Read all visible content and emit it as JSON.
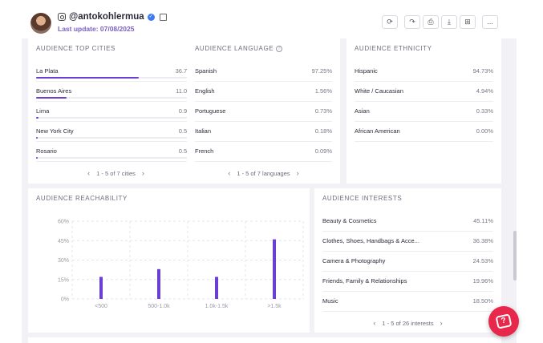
{
  "header": {
    "handle": "@antokohlermua",
    "last_update": "Last update: 07/08/2025",
    "toolbar": {
      "refresh_icon": "refresh-icon",
      "share_icon": "share-icon",
      "print_icon": "print-icon",
      "download_icon": "download-icon",
      "add_icon": "add-to-list-icon",
      "more_label": "..."
    }
  },
  "top_cities": {
    "title": "AUDIENCE TOP CITIES",
    "items": [
      {
        "label": "La Plata",
        "value": "36.78%",
        "fraction": 0.3678
      },
      {
        "label": "Buenos Aires",
        "value": "11.05%",
        "fraction": 0.1105
      },
      {
        "label": "Lima",
        "value": "0.93%",
        "fraction": 0.0093
      },
      {
        "label": "New York City",
        "value": "0.52%",
        "fraction": 0.0052
      },
      {
        "label": "Rosario",
        "value": "0.52%",
        "fraction": 0.0052
      }
    ],
    "pager": "1 - 5 of 7 cities"
  },
  "language": {
    "title": "AUDIENCE LANGUAGE",
    "items": [
      {
        "label": "Spanish",
        "value": "97.25%"
      },
      {
        "label": "English",
        "value": "1.56%"
      },
      {
        "label": "Portuguese",
        "value": "0.73%"
      },
      {
        "label": "Italian",
        "value": "0.18%"
      },
      {
        "label": "French",
        "value": "0.09%"
      }
    ],
    "pager": "1 - 5 of 7 languages"
  },
  "ethnicity": {
    "title": "AUDIENCE ETHNICITY",
    "items": [
      {
        "label": "Hispanic",
        "value": "94.73%"
      },
      {
        "label": "White / Caucasian",
        "value": "4.94%"
      },
      {
        "label": "Asian",
        "value": "0.33%"
      },
      {
        "label": "African American",
        "value": "0.00%"
      }
    ]
  },
  "reachability": {
    "title": "AUDIENCE REACHABILITY",
    "chart_data": {
      "type": "bar",
      "title": "AUDIENCE REACHABILITY",
      "categories": [
        "<500",
        "500-1.0k",
        "1.0k-1.5k",
        ">1.5k"
      ],
      "values": [
        17,
        23,
        17,
        46
      ],
      "y_ticks": [
        "0%",
        "15%",
        "30%",
        "45%",
        "60%"
      ],
      "ylim": [
        0,
        60
      ],
      "grid": true,
      "bar_color": "#6b3fd4"
    }
  },
  "interests": {
    "title": "AUDIENCE INTERESTS",
    "items": [
      {
        "label": "Beauty & Cosmetics",
        "value": "45.11%"
      },
      {
        "label": "Clothes, Shoes, Handbags & Acce...",
        "value": "36.38%"
      },
      {
        "label": "Camera & Photography",
        "value": "24.53%"
      },
      {
        "label": "Friends, Family & Relationships",
        "value": "19.96%"
      },
      {
        "label": "Music",
        "value": "18.50%"
      }
    ],
    "pager": "1 - 5 of 26 interests"
  },
  "colors": {
    "accent": "#6b3fd4",
    "help_button": "#e8284a",
    "verified": "#3d7bf2"
  }
}
